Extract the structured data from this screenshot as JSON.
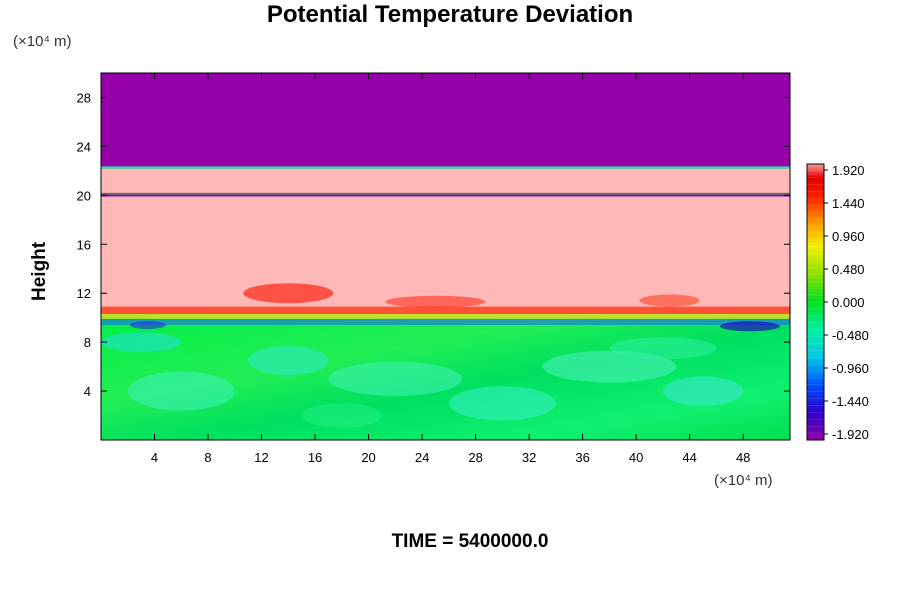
{
  "chart_data": {
    "type": "heatmap",
    "title": "Potential Temperature Deviation",
    "ylabel": "Height",
    "xlabel": "",
    "y_unit": "(×10⁴ m)",
    "x_unit": "(×10⁴ m)",
    "x_ticks": [
      "4",
      "8",
      "12",
      "16",
      "20",
      "24",
      "28",
      "32",
      "36",
      "40",
      "44",
      "48"
    ],
    "y_ticks": [
      "4",
      "8",
      "12",
      "16",
      "20",
      "24",
      "28"
    ],
    "xlim": [
      0,
      51.5
    ],
    "ylim": [
      0,
      30
    ],
    "colorbar": {
      "labels": [
        "1.920",
        "1.440",
        "0.960",
        "0.480",
        "0.000",
        "-0.480",
        "-0.960",
        "-1.440",
        "-1.920"
      ],
      "range": [
        -1.92,
        1.92
      ]
    },
    "layers": [
      {
        "from": 22.3,
        "to": 30.0,
        "value": -1.92
      },
      {
        "from": 20.2,
        "to": 22.3,
        "value": 1.92
      },
      {
        "from": 19.9,
        "to": 20.2,
        "value": -1.92
      },
      {
        "from": 10.3,
        "to": 19.9,
        "value": 1.92
      },
      {
        "from": 0.0,
        "to": 10.3,
        "value": 0.0
      }
    ]
  },
  "footer": {
    "time_label": "TIME = 5400000.0"
  }
}
